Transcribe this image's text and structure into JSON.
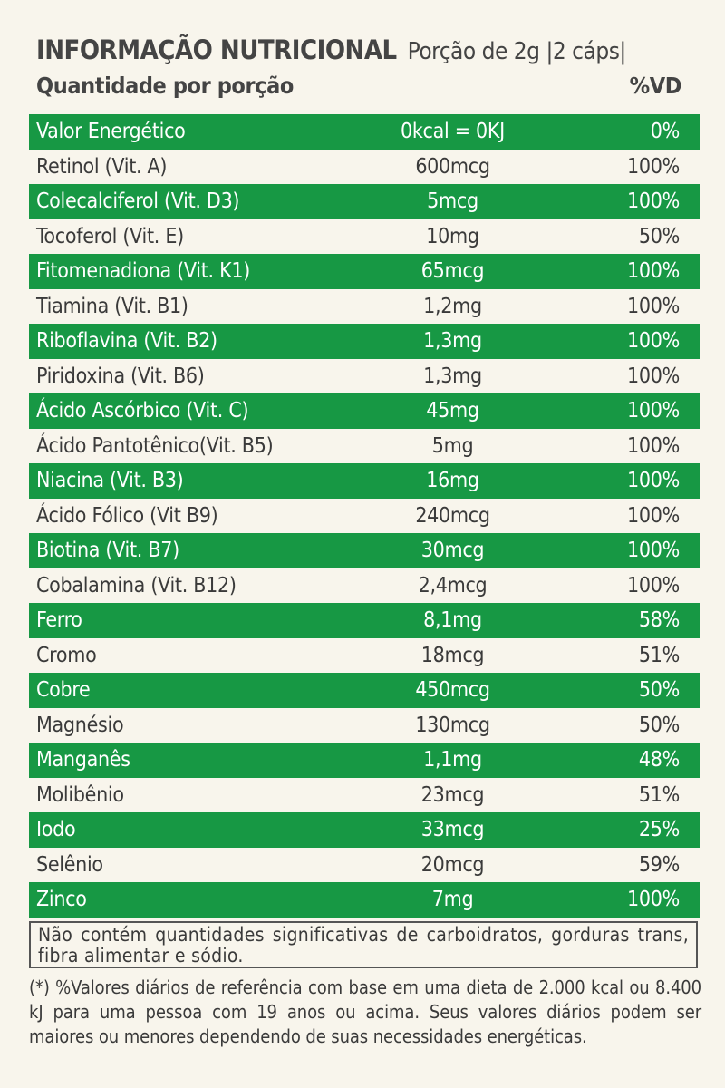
{
  "header": {
    "title": "INFORMAÇÃO NUTRICIONAL",
    "portion": "Porção de 2g |2 cáps|",
    "quantity_label": "Quantidade por porção",
    "vd_label": "%VD"
  },
  "colors": {
    "green": "#179844",
    "background": "#f8f5ec",
    "text": "#3a3a3a"
  },
  "rows": [
    {
      "name": "Valor Energético",
      "amount": "0kcal = 0KJ",
      "vd": "0%"
    },
    {
      "name": "Retinol (Vit. A)",
      "amount": "600mcg",
      "vd": "100%"
    },
    {
      "name": "Colecalciferol (Vit. D3)",
      "amount": "5mcg",
      "vd": "100%"
    },
    {
      "name": "Tocoferol (Vit. E)",
      "amount": "10mg",
      "vd": "50%"
    },
    {
      "name": "Fitomenadiona (Vit. K1)",
      "amount": "65mcg",
      "vd": "100%"
    },
    {
      "name": "Tiamina (Vit. B1)",
      "amount": "1,2mg",
      "vd": "100%"
    },
    {
      "name": "Riboflavina (Vit. B2)",
      "amount": "1,3mg",
      "vd": "100%"
    },
    {
      "name": "Piridoxina (Vit. B6)",
      "amount": "1,3mg",
      "vd": "100%"
    },
    {
      "name": "Ácido Ascórbico (Vit. C)",
      "amount": "45mg",
      "vd": "100%"
    },
    {
      "name": "Ácido Pantotênico(Vit. B5)",
      "amount": "5mg",
      "vd": "100%"
    },
    {
      "name": "Niacina (Vit. B3)",
      "amount": "16mg",
      "vd": "100%"
    },
    {
      "name": "Ácido Fólico (Vit B9)",
      "amount": "240mcg",
      "vd": "100%"
    },
    {
      "name": "Biotina (Vit. B7)",
      "amount": "30mcg",
      "vd": "100%"
    },
    {
      "name": "Cobalamina (Vit. B12)",
      "amount": "2,4mcg",
      "vd": "100%"
    },
    {
      "name": "Ferro",
      "amount": "8,1mg",
      "vd": "58%"
    },
    {
      "name": "Cromo",
      "amount": "18mcg",
      "vd": "51%"
    },
    {
      "name": "Cobre",
      "amount": "450mcg",
      "vd": "50%"
    },
    {
      "name": "Magnésio",
      "amount": "130mcg",
      "vd": "50%"
    },
    {
      "name": "Manganês",
      "amount": "1,1mg",
      "vd": "48%"
    },
    {
      "name": "Molibênio",
      "amount": "23mcg",
      "vd": "51%"
    },
    {
      "name": "Iodo",
      "amount": "33mcg",
      "vd": "25%"
    },
    {
      "name": "Selênio",
      "amount": "20mcg",
      "vd": "59%"
    },
    {
      "name": "Zinco",
      "amount": "7mg",
      "vd": "100%"
    }
  ],
  "note": "Não contém quantidades significativas de carboidratos, gorduras trans, fibra alimentar e sódio.",
  "footnote": "(*) %Valores diários de referência com base em uma dieta de 2.000 kcal ou 8.400 kJ para uma pessoa com 19 anos ou acima. Seus valores diários podem ser maiores ou menores dependendo de suas necessidades energéticas."
}
